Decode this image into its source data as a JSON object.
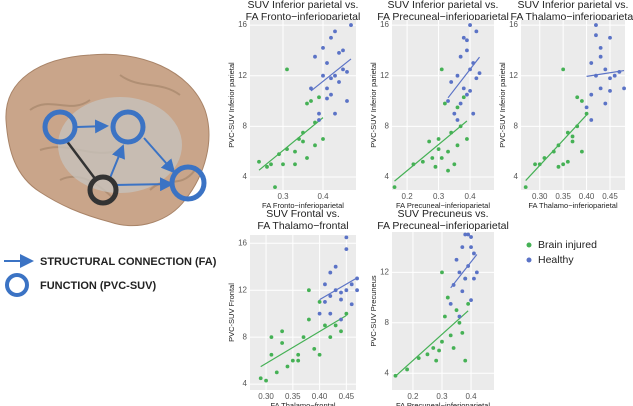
{
  "diagram_legend": [
    "STRUCTURAL CONNECTION (FA)",
    "FUNCTION (PVC-SUV)"
  ],
  "chart_data": [
    {
      "type": "scatter",
      "title": "SUV Inferior parietal vs.",
      "subtitle": "FA Fronto−inferioparietal",
      "x_label": "FA Fronto−inferioparietal",
      "y_label": "PVC-SUV Inferior parietal",
      "xlim": [
        0.2175,
        0.4825
      ],
      "ylim": [
        2.97,
        16.4
      ],
      "xticks": [
        0.3,
        0.4
      ],
      "yticks": [
        4,
        8,
        12,
        16
      ],
      "grid": true,
      "series": [
        {
          "color": "#45b155",
          "x": [
            0.24,
            0.26,
            0.28,
            0.3,
            0.31,
            0.31,
            0.33,
            0.34,
            0.35,
            0.36,
            0.37,
            0.38,
            0.38,
            0.4,
            0.29,
            0.33,
            0.36,
            0.39,
            0.27,
            0.35
          ],
          "values": [
            5.2,
            4.8,
            3.2,
            5.0,
            12.5,
            6.2,
            5.0,
            7.0,
            7.5,
            9.8,
            10.0,
            8.3,
            6.5,
            7.0,
            5.8,
            6.0,
            5.5,
            10.3,
            5.0,
            6.8
          ]
        },
        {
          "color": "#5b73c6",
          "x": [
            0.37,
            0.38,
            0.39,
            0.4,
            0.4,
            0.41,
            0.41,
            0.42,
            0.42,
            0.43,
            0.43,
            0.44,
            0.44,
            0.45,
            0.45,
            0.46,
            0.47,
            0.39,
            0.41,
            0.43,
            0.46,
            0.42
          ],
          "values": [
            11.0,
            13.5,
            9.0,
            14.2,
            12.0,
            11.0,
            13.0,
            15.0,
            10.5,
            12.0,
            9.0,
            13.8,
            11.5,
            12.5,
            14.0,
            10.0,
            16.0,
            8.5,
            10.2,
            15.5,
            12.3,
            11.8
          ]
        }
      ]
    },
    {
      "type": "scatter",
      "title": "SUV Inferior parietal vs.",
      "subtitle": "FA Precuneal−inferioparietal",
      "x_label": "FA Precuneal−inferioparietal",
      "y_label": "PVC-SUV Inferior parietal",
      "xlim": [
        0.152,
        0.476
      ],
      "ylim": [
        2.97,
        16.4
      ],
      "xticks": [
        0.2,
        0.3,
        0.4
      ],
      "yticks": [
        4,
        8,
        12,
        16
      ],
      "grid": true,
      "series": [
        {
          "color": "#45b155",
          "x": [
            0.16,
            0.22,
            0.25,
            0.27,
            0.28,
            0.29,
            0.3,
            0.3,
            0.31,
            0.32,
            0.33,
            0.34,
            0.35,
            0.36,
            0.37,
            0.38,
            0.39,
            0.31,
            0.33,
            0.36
          ],
          "values": [
            3.2,
            5.0,
            5.2,
            6.8,
            5.5,
            4.8,
            7.0,
            6.2,
            5.5,
            9.8,
            6.0,
            7.5,
            5.0,
            6.5,
            8.0,
            10.3,
            7.0,
            12.5,
            4.5,
            9.5
          ]
        },
        {
          "color": "#5b73c6",
          "x": [
            0.33,
            0.34,
            0.35,
            0.36,
            0.37,
            0.37,
            0.38,
            0.38,
            0.39,
            0.39,
            0.4,
            0.4,
            0.41,
            0.41,
            0.42,
            0.42,
            0.43,
            0.36,
            0.4,
            0.39
          ],
          "values": [
            10,
            11.5,
            9,
            12,
            13.5,
            9.8,
            15,
            11,
            14,
            10.5,
            16,
            12.5,
            13,
            9,
            15.5,
            11.8,
            12.2,
            8.5,
            10.8,
            14.8
          ]
        }
      ]
    },
    {
      "type": "scatter",
      "title": "SUV Inferior parietal vs.",
      "subtitle": "FA Thalamo−inferioparietal",
      "x_label": "FA Thalamo−inferioparietal",
      "y_label": "PVC-SUV Inferior parietal",
      "xlim": [
        0.26,
        0.482
      ],
      "ylim": [
        2.97,
        16.4
      ],
      "xticks": [
        {
          "value": 0.3,
          "label": "0.30"
        },
        0.35,
        {
          "value": 0.4,
          "label": "0.40"
        },
        0.45
      ],
      "yticks": [
        4,
        8,
        12,
        16
      ],
      "grid": true,
      "series": [
        {
          "color": "#45b155",
          "x": [
            0.27,
            0.3,
            0.31,
            0.33,
            0.34,
            0.35,
            0.35,
            0.36,
            0.37,
            0.38,
            0.38,
            0.39,
            0.4,
            0.36,
            0.34,
            0.37,
            0.29,
            0.39
          ],
          "values": [
            3.2,
            5.0,
            5.5,
            6.0,
            6.5,
            5.0,
            12.5,
            7.5,
            6.8,
            8.0,
            10.3,
            6.0,
            9.0,
            5.2,
            4.8,
            7.2,
            5.0,
            10.0
          ]
        },
        {
          "color": "#5b73c6",
          "x": [
            0.4,
            0.41,
            0.41,
            0.42,
            0.42,
            0.43,
            0.43,
            0.44,
            0.44,
            0.45,
            0.45,
            0.46,
            0.47,
            0.41,
            0.43,
            0.45,
            0.48,
            0.42
          ],
          "values": [
            9.5,
            13,
            10.5,
            15.2,
            12,
            11,
            14.2,
            9.8,
            12.5,
            15,
            11.8,
            12,
            12.3,
            8.5,
            13.5,
            10.8,
            11.0,
            16
          ]
        }
      ]
    },
    {
      "type": "scatter",
      "title": "SUV Frontal vs.",
      "subtitle": "FA Thalamo−frontal",
      "x_label": "FA Thalamo−frontal",
      "y_label": "PVC-SUV Frontal",
      "xlim": [
        0.27,
        0.468
      ],
      "ylim": [
        3.5,
        16.7
      ],
      "xticks": [
        {
          "value": 0.3,
          "label": "0.30"
        },
        0.35,
        {
          "value": 0.4,
          "label": "0.40"
        },
        0.45
      ],
      "yticks": [
        4,
        8,
        12,
        16
      ],
      "grid": true,
      "series": [
        {
          "color": "#45b155",
          "x": [
            0.29,
            0.3,
            0.31,
            0.32,
            0.33,
            0.34,
            0.35,
            0.36,
            0.37,
            0.38,
            0.39,
            0.4,
            0.41,
            0.42,
            0.43,
            0.44,
            0.45,
            0.33,
            0.36,
            0.4,
            0.38,
            0.31
          ],
          "values": [
            4.5,
            4.3,
            6.5,
            5.0,
            8.5,
            5.5,
            6.0,
            6.5,
            8.0,
            9.5,
            7.0,
            6.5,
            9.0,
            8.0,
            9.0,
            8.5,
            10.0,
            7.5,
            6.0,
            11.0,
            12.0,
            8.0
          ]
        },
        {
          "color": "#5b73c6",
          "x": [
            0.4,
            0.41,
            0.41,
            0.42,
            0.42,
            0.43,
            0.43,
            0.44,
            0.44,
            0.45,
            0.45,
            0.46,
            0.46,
            0.47,
            0.47,
            0.42,
            0.44,
            0.45
          ],
          "values": [
            10,
            11,
            12.5,
            11.5,
            10,
            12,
            14,
            9.5,
            11.8,
            16.5,
            15.5,
            12.5,
            10.8,
            13,
            12,
            13.5,
            11.2,
            12.0
          ]
        }
      ]
    },
    {
      "type": "scatter",
      "title": "SUV Precuneus vs.",
      "subtitle": "FA Precuneal−inferioparietal",
      "x_label": "FA Precuneal−inferioparietal",
      "y_label": "PVC-SUV Precuneus",
      "xlim": [
        0.128,
        0.479
      ],
      "ylim": [
        2.67,
        15.2
      ],
      "xticks": [
        0.2,
        0.3,
        0.4
      ],
      "yticks": [
        4,
        8,
        12
      ],
      "grid": true,
      "legend": "right",
      "series": [
        {
          "name": "Brain injured",
          "color": "#45b155",
          "x": [
            0.14,
            0.18,
            0.22,
            0.25,
            0.27,
            0.28,
            0.29,
            0.3,
            0.31,
            0.32,
            0.33,
            0.34,
            0.35,
            0.36,
            0.37,
            0.38,
            0.38,
            0.39,
            0.3
          ],
          "values": [
            3.8,
            4.3,
            5.2,
            5.5,
            6.0,
            5.0,
            5.8,
            6.5,
            8.5,
            10.0,
            7.0,
            6.0,
            9.0,
            8.0,
            7.2,
            11.5,
            5.0,
            9.5,
            12.0
          ]
        },
        {
          "name": "Healthy",
          "color": "#5b73c6",
          "x": [
            0.33,
            0.34,
            0.35,
            0.36,
            0.37,
            0.37,
            0.38,
            0.38,
            0.39,
            0.39,
            0.4,
            0.4,
            0.41,
            0.41,
            0.42,
            0.36,
            0.4
          ],
          "values": [
            9.5,
            11,
            13,
            12,
            14,
            10.5,
            15,
            11.5,
            15,
            12.5,
            14,
            9.8,
            13.5,
            11.5,
            12,
            8.5,
            14.8
          ]
        }
      ]
    }
  ]
}
